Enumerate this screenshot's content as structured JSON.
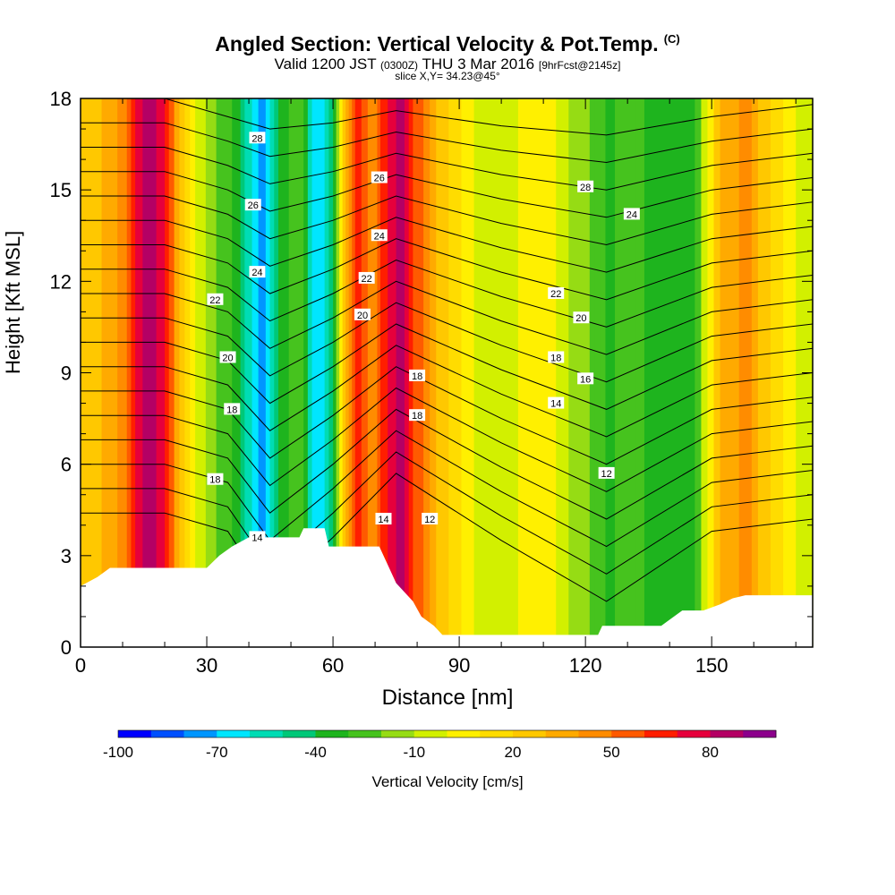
{
  "title": {
    "main": "Angled Section: Vertical Velocity & Pot.Temp.",
    "main_suffix": "(C)",
    "valid_prefix": "Valid 1200 JST",
    "valid_utc": "(0300Z)",
    "valid_date": "THU 3 Mar 2016",
    "forecast": "[9hrFcst@2145z]",
    "slice": "slice X,Y= 34.23@45°"
  },
  "chart_data": {
    "type": "heatmap",
    "xlabel": "Distance [nm]",
    "ylabel": "Height [Kft MSL]",
    "xlim": [
      0,
      174
    ],
    "ylim": [
      0,
      18
    ],
    "xticks": [
      "0",
      "30",
      "60",
      "90",
      "120",
      "150"
    ],
    "yticks": [
      "0",
      "3",
      "6",
      "9",
      "12",
      "15",
      "18"
    ],
    "colorbar": {
      "label": "Vertical Velocity [cm/s]",
      "tick_labels": [
        "-100",
        "-70",
        "-40",
        "-10",
        "20",
        "50",
        "80"
      ],
      "levels": [
        -100,
        -90,
        -80,
        -70,
        -60,
        -50,
        -40,
        -30,
        -20,
        -10,
        0,
        10,
        20,
        30,
        40,
        50,
        60,
        70,
        80,
        90,
        100
      ],
      "colors": [
        "#0000ff",
        "#0050ff",
        "#0096ff",
        "#00e6ff",
        "#00dcb4",
        "#00c878",
        "#1eb41e",
        "#46c31e",
        "#96dc14",
        "#d2f000",
        "#fff000",
        "#ffdc00",
        "#ffc800",
        "#ffaa00",
        "#ff8c00",
        "#ff5a00",
        "#ff1e00",
        "#e6003c",
        "#b40064",
        "#8c008c"
      ]
    },
    "velocity_profile": [
      {
        "x": 0,
        "w": 20
      },
      {
        "x": 5,
        "w": 30
      },
      {
        "x": 10,
        "w": 45
      },
      {
        "x": 14,
        "w": 75
      },
      {
        "x": 17,
        "w": 90
      },
      {
        "x": 21,
        "w": 60
      },
      {
        "x": 26,
        "w": 5
      },
      {
        "x": 31,
        "w": -15
      },
      {
        "x": 36,
        "w": -30
      },
      {
        "x": 40,
        "w": -55
      },
      {
        "x": 43,
        "w": -75
      },
      {
        "x": 47,
        "w": -40
      },
      {
        "x": 52,
        "w": -20
      },
      {
        "x": 56,
        "w": -70
      },
      {
        "x": 60,
        "w": -45
      },
      {
        "x": 63,
        "w": 30
      },
      {
        "x": 66,
        "w": 70
      },
      {
        "x": 69,
        "w": 40
      },
      {
        "x": 72,
        "w": 65
      },
      {
        "x": 76,
        "w": 85
      },
      {
        "x": 80,
        "w": 55
      },
      {
        "x": 86,
        "w": 25
      },
      {
        "x": 92,
        "w": 5
      },
      {
        "x": 98,
        "w": -10
      },
      {
        "x": 104,
        "w": 0
      },
      {
        "x": 110,
        "w": 10
      },
      {
        "x": 116,
        "w": -10
      },
      {
        "x": 121,
        "w": -20
      },
      {
        "x": 126,
        "w": -35
      },
      {
        "x": 130,
        "w": -20
      },
      {
        "x": 134,
        "w": -30
      },
      {
        "x": 140,
        "w": -40
      },
      {
        "x": 146,
        "w": -30
      },
      {
        "x": 152,
        "w": 30
      },
      {
        "x": 158,
        "w": 45
      },
      {
        "x": 164,
        "w": 20
      },
      {
        "x": 170,
        "w": 0
      },
      {
        "x": 174,
        "w": -5
      }
    ],
    "terrain": [
      {
        "x": 0,
        "h": 2.0
      },
      {
        "x": 4,
        "h": 2.3
      },
      {
        "x": 7,
        "h": 2.6
      },
      {
        "x": 30,
        "h": 2.6
      },
      {
        "x": 33,
        "h": 3.0
      },
      {
        "x": 36,
        "h": 3.3
      },
      {
        "x": 40,
        "h": 3.6
      },
      {
        "x": 52,
        "h": 3.6
      },
      {
        "x": 53,
        "h": 3.9
      },
      {
        "x": 58,
        "h": 3.9
      },
      {
        "x": 59,
        "h": 3.3
      },
      {
        "x": 71,
        "h": 3.3
      },
      {
        "x": 73,
        "h": 2.7
      },
      {
        "x": 75,
        "h": 2.1
      },
      {
        "x": 79,
        "h": 1.5
      },
      {
        "x": 81,
        "h": 1.0
      },
      {
        "x": 84,
        "h": 0.7
      },
      {
        "x": 86,
        "h": 0.4
      },
      {
        "x": 123,
        "h": 0.4
      },
      {
        "x": 124,
        "h": 0.7
      },
      {
        "x": 138,
        "h": 0.7
      },
      {
        "x": 140,
        "h": 0.9
      },
      {
        "x": 143,
        "h": 1.2
      },
      {
        "x": 148,
        "h": 1.2
      },
      {
        "x": 152,
        "h": 1.4
      },
      {
        "x": 155,
        "h": 1.6
      },
      {
        "x": 158,
        "h": 1.7
      },
      {
        "x": 174,
        "h": 1.7
      }
    ],
    "isentrope_labels": [
      {
        "text": "28",
        "x": 42,
        "y": 16.7
      },
      {
        "text": "26",
        "x": 41,
        "y": 14.5
      },
      {
        "text": "24",
        "x": 42,
        "y": 12.3
      },
      {
        "text": "22",
        "x": 32,
        "y": 11.4
      },
      {
        "text": "20",
        "x": 35,
        "y": 9.5
      },
      {
        "text": "18",
        "x": 36,
        "y": 7.8
      },
      {
        "text": "18",
        "x": 32,
        "y": 5.5
      },
      {
        "text": "14",
        "x": 42,
        "y": 3.6
      },
      {
        "text": "26",
        "x": 71,
        "y": 15.4
      },
      {
        "text": "24",
        "x": 71,
        "y": 13.5
      },
      {
        "text": "22",
        "x": 68,
        "y": 12.1
      },
      {
        "text": "20",
        "x": 67,
        "y": 10.9
      },
      {
        "text": "18",
        "x": 80,
        "y": 8.9
      },
      {
        "text": "18",
        "x": 80,
        "y": 7.6
      },
      {
        "text": "14",
        "x": 72,
        "y": 4.2
      },
      {
        "text": "12",
        "x": 83,
        "y": 4.2
      },
      {
        "text": "28",
        "x": 120,
        "y": 15.1
      },
      {
        "text": "24",
        "x": 131,
        "y": 14.2
      },
      {
        "text": "22",
        "x": 113,
        "y": 11.6
      },
      {
        "text": "20",
        "x": 119,
        "y": 10.8
      },
      {
        "text": "18",
        "x": 113,
        "y": 9.5
      },
      {
        "text": "16",
        "x": 120,
        "y": 8.8
      },
      {
        "text": "14",
        "x": 113,
        "y": 8.0
      },
      {
        "text": "12",
        "x": 125,
        "y": 5.7
      }
    ],
    "isentrope_lines": [
      [
        [
          0,
          18.0
        ],
        [
          20,
          18.0
        ],
        [
          35,
          17.4
        ],
        [
          45,
          17.0
        ],
        [
          60,
          17.2
        ],
        [
          75,
          17.6
        ],
        [
          100,
          17.1
        ],
        [
          125,
          16.8
        ],
        [
          150,
          17.4
        ],
        [
          174,
          17.8
        ]
      ],
      [
        [
          0,
          17.2
        ],
        [
          20,
          17.2
        ],
        [
          35,
          16.6
        ],
        [
          45,
          16.1
        ],
        [
          60,
          16.4
        ],
        [
          75,
          16.9
        ],
        [
          100,
          16.3
        ],
        [
          125,
          15.9
        ],
        [
          150,
          16.6
        ],
        [
          174,
          17.0
        ]
      ],
      [
        [
          0,
          16.4
        ],
        [
          20,
          16.4
        ],
        [
          35,
          15.8
        ],
        [
          45,
          15.2
        ],
        [
          60,
          15.6
        ],
        [
          75,
          16.2
        ],
        [
          100,
          15.5
        ],
        [
          125,
          15.0
        ],
        [
          150,
          15.8
        ],
        [
          174,
          16.2
        ]
      ],
      [
        [
          0,
          15.6
        ],
        [
          20,
          15.6
        ],
        [
          35,
          15.0
        ],
        [
          45,
          14.3
        ],
        [
          60,
          14.8
        ],
        [
          75,
          15.5
        ],
        [
          100,
          14.7
        ],
        [
          125,
          14.1
        ],
        [
          150,
          15.0
        ],
        [
          174,
          15.4
        ]
      ],
      [
        [
          0,
          14.8
        ],
        [
          20,
          14.8
        ],
        [
          35,
          14.2
        ],
        [
          45,
          13.4
        ],
        [
          60,
          14.0
        ],
        [
          75,
          14.8
        ],
        [
          100,
          13.9
        ],
        [
          125,
          13.2
        ],
        [
          150,
          14.2
        ],
        [
          174,
          14.6
        ]
      ],
      [
        [
          0,
          14.0
        ],
        [
          20,
          14.0
        ],
        [
          35,
          13.4
        ],
        [
          45,
          12.5
        ],
        [
          60,
          13.2
        ],
        [
          75,
          14.1
        ],
        [
          100,
          13.1
        ],
        [
          125,
          12.3
        ],
        [
          150,
          13.4
        ],
        [
          174,
          13.8
        ]
      ],
      [
        [
          0,
          13.2
        ],
        [
          20,
          13.2
        ],
        [
          35,
          12.6
        ],
        [
          45,
          11.6
        ],
        [
          60,
          12.4
        ],
        [
          75,
          13.4
        ],
        [
          100,
          12.3
        ],
        [
          125,
          11.4
        ],
        [
          150,
          12.6
        ],
        [
          174,
          13.0
        ]
      ],
      [
        [
          0,
          12.4
        ],
        [
          20,
          12.4
        ],
        [
          35,
          11.8
        ],
        [
          45,
          10.7
        ],
        [
          60,
          11.6
        ],
        [
          75,
          12.7
        ],
        [
          100,
          11.5
        ],
        [
          125,
          10.5
        ],
        [
          150,
          11.8
        ],
        [
          174,
          12.2
        ]
      ],
      [
        [
          0,
          11.6
        ],
        [
          20,
          11.6
        ],
        [
          35,
          11.0
        ],
        [
          45,
          9.8
        ],
        [
          60,
          10.8
        ],
        [
          75,
          12.0
        ],
        [
          100,
          10.7
        ],
        [
          125,
          9.6
        ],
        [
          150,
          11.0
        ],
        [
          174,
          11.4
        ]
      ],
      [
        [
          0,
          10.8
        ],
        [
          20,
          10.8
        ],
        [
          35,
          10.2
        ],
        [
          45,
          8.9
        ],
        [
          60,
          10.0
        ],
        [
          75,
          11.3
        ],
        [
          100,
          9.9
        ],
        [
          125,
          8.7
        ],
        [
          150,
          10.2
        ],
        [
          174,
          10.6
        ]
      ],
      [
        [
          0,
          10.0
        ],
        [
          20,
          10.0
        ],
        [
          35,
          9.4
        ],
        [
          45,
          8.0
        ],
        [
          60,
          9.2
        ],
        [
          75,
          10.6
        ],
        [
          100,
          9.1
        ],
        [
          125,
          7.8
        ],
        [
          150,
          9.4
        ],
        [
          174,
          9.8
        ]
      ],
      [
        [
          0,
          9.2
        ],
        [
          20,
          9.2
        ],
        [
          35,
          8.6
        ],
        [
          45,
          7.1
        ],
        [
          60,
          8.4
        ],
        [
          75,
          9.9
        ],
        [
          100,
          8.3
        ],
        [
          125,
          6.9
        ],
        [
          150,
          8.6
        ],
        [
          174,
          9.0
        ]
      ],
      [
        [
          0,
          8.4
        ],
        [
          20,
          8.4
        ],
        [
          35,
          7.8
        ],
        [
          45,
          6.2
        ],
        [
          60,
          7.6
        ],
        [
          75,
          9.2
        ],
        [
          100,
          7.5
        ],
        [
          125,
          6.0
        ],
        [
          150,
          7.8
        ],
        [
          174,
          8.2
        ]
      ],
      [
        [
          0,
          7.6
        ],
        [
          20,
          7.6
        ],
        [
          35,
          7.0
        ],
        [
          45,
          5.3
        ],
        [
          60,
          6.8
        ],
        [
          75,
          8.5
        ],
        [
          100,
          6.7
        ],
        [
          125,
          5.1
        ],
        [
          150,
          7.0
        ],
        [
          174,
          7.4
        ]
      ],
      [
        [
          0,
          6.8
        ],
        [
          20,
          6.8
        ],
        [
          35,
          6.2
        ],
        [
          45,
          4.4
        ],
        [
          60,
          6.0
        ],
        [
          75,
          7.8
        ],
        [
          100,
          5.9
        ],
        [
          125,
          4.2
        ],
        [
          150,
          6.2
        ],
        [
          174,
          6.6
        ]
      ],
      [
        [
          0,
          6.0
        ],
        [
          20,
          6.0
        ],
        [
          35,
          5.4
        ],
        [
          45,
          3.5
        ],
        [
          60,
          5.2
        ],
        [
          75,
          7.1
        ],
        [
          100,
          5.1
        ],
        [
          125,
          3.3
        ],
        [
          150,
          5.4
        ],
        [
          174,
          5.8
        ]
      ],
      [
        [
          0,
          5.2
        ],
        [
          20,
          5.2
        ],
        [
          35,
          4.6
        ],
        [
          45,
          2.6
        ],
        [
          60,
          4.4
        ],
        [
          75,
          6.4
        ],
        [
          100,
          4.3
        ],
        [
          125,
          2.4
        ],
        [
          150,
          4.6
        ],
        [
          174,
          5.0
        ]
      ],
      [
        [
          0,
          4.4
        ],
        [
          20,
          4.4
        ],
        [
          35,
          3.8
        ],
        [
          45,
          1.7
        ],
        [
          60,
          3.6
        ],
        [
          75,
          5.7
        ],
        [
          100,
          3.5
        ],
        [
          125,
          1.5
        ],
        [
          150,
          3.8
        ],
        [
          174,
          4.2
        ]
      ]
    ]
  }
}
